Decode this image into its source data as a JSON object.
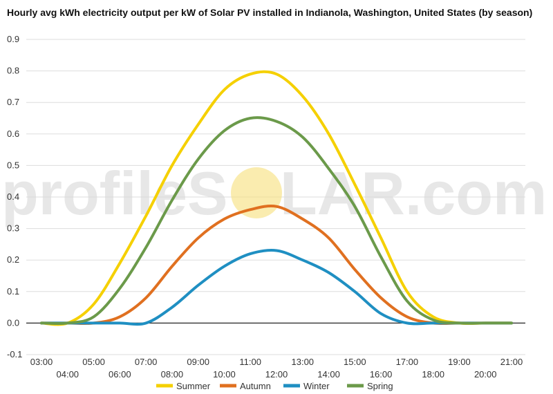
{
  "chart_data": {
    "type": "line",
    "title": "Hourly avg kWh electricity output per kW of Solar PV installed in Indianola, Washington, United States (by season)",
    "xlabel": "",
    "ylabel": "",
    "ylim": [
      -0.1,
      0.9
    ],
    "yticks": [
      "0.9",
      "0.8",
      "0.7",
      "0.6",
      "0.5",
      "0.4",
      "0.3",
      "0.2",
      "0.1",
      "0.0",
      "-0.1"
    ],
    "x": [
      "03:00",
      "04:00",
      "05:00",
      "06:00",
      "07:00",
      "08:00",
      "09:00",
      "10:00",
      "11:00",
      "12:00",
      "13:00",
      "14:00",
      "15:00",
      "16:00",
      "17:00",
      "18:00",
      "19:00",
      "20:00",
      "21:00"
    ],
    "xticks_upper": [
      "03:00",
      "05:00",
      "07:00",
      "09:00",
      "11:00",
      "13:00",
      "15:00",
      "17:00",
      "19:00",
      "21:00"
    ],
    "xticks_lower": [
      "04:00",
      "06:00",
      "08:00",
      "10:00",
      "12:00",
      "14:00",
      "16:00",
      "18:00",
      "20:00"
    ],
    "grid": true,
    "legend_position": "bottom",
    "series": [
      {
        "name": "Summer",
        "color": "#f5d000",
        "values": [
          0.0,
          0.0,
          0.06,
          0.19,
          0.34,
          0.5,
          0.63,
          0.74,
          0.79,
          0.79,
          0.72,
          0.6,
          0.44,
          0.27,
          0.1,
          0.02,
          0.0,
          0.0,
          0.0
        ]
      },
      {
        "name": "Autumn",
        "color": "#e07020",
        "values": [
          0.0,
          0.0,
          0.0,
          0.02,
          0.08,
          0.18,
          0.27,
          0.33,
          0.36,
          0.37,
          0.33,
          0.27,
          0.17,
          0.08,
          0.02,
          0.0,
          0.0,
          0.0,
          0.0
        ]
      },
      {
        "name": "Winter",
        "color": "#1f8fc2",
        "values": [
          0.0,
          0.0,
          0.0,
          0.0,
          0.0,
          0.05,
          0.12,
          0.18,
          0.22,
          0.23,
          0.2,
          0.16,
          0.1,
          0.03,
          0.0,
          0.0,
          0.0,
          0.0,
          0.0
        ]
      },
      {
        "name": "Spring",
        "color": "#6b9a4a",
        "values": [
          0.0,
          0.0,
          0.02,
          0.11,
          0.24,
          0.39,
          0.52,
          0.61,
          0.65,
          0.64,
          0.59,
          0.49,
          0.37,
          0.21,
          0.07,
          0.01,
          0.0,
          0.0,
          0.0
        ]
      }
    ]
  },
  "watermark": {
    "text_left": "profileS",
    "text_right": "LAR.com",
    "sun_color": "#f7e07a"
  }
}
